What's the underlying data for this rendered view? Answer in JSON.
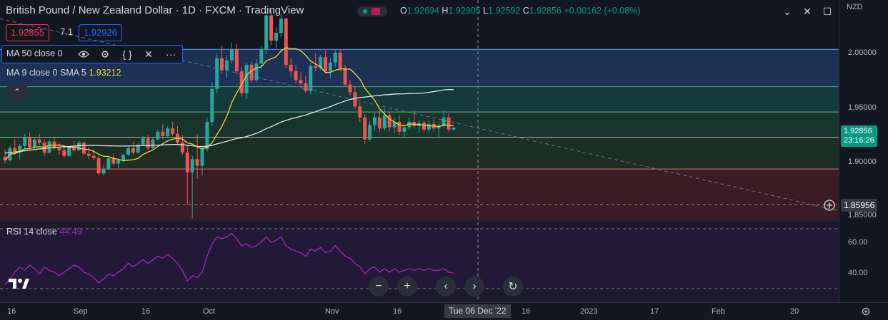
{
  "header": {
    "title": "British Pound / New Zealand Dollar · 1D · FXCM · TradingView",
    "ohlc": {
      "o_label": "O",
      "o": "1.92694",
      "h_label": "H",
      "h": "1.92905",
      "l_label": "L",
      "l": "1.92592",
      "c_label": "C",
      "c": "1.92856",
      "change": "+0.00162 (+0.08%)"
    },
    "sell_price": "1.92855",
    "spread": "7.1",
    "buy_price": "1.92926",
    "currency": "NZD"
  },
  "legend": {
    "ma50": "MA 50 close 0",
    "ma9_label": "MA 9 close 0 SMA 5",
    "ma9_value": "1.93212",
    "rsi_label": "RSI 14 close",
    "rsi_value": "44.49"
  },
  "price_axis": {
    "ticks": [
      "2.00000",
      "1.95000",
      "1.90000",
      "1.85000"
    ],
    "current_price": "1.92856",
    "countdown": "23:16:26",
    "crosshair_price": "1.85956",
    "rsi_ticks": [
      "60.00",
      "40.00"
    ]
  },
  "time_axis": {
    "labels": [
      "16",
      "Sep",
      "16",
      "Oct",
      "Nov",
      "16",
      "16",
      "2023",
      "17",
      "Feb",
      "20"
    ],
    "crosshair_label": "Tue 06 Dec '22"
  },
  "colors": {
    "up": "#26a69a",
    "down": "#ef5350",
    "ma9": "#f5d327",
    "ma50": "#e0e3eb",
    "rsi": "#9c27b0",
    "accent": "#2962ff"
  },
  "icons": [
    "eye-icon",
    "gear-icon",
    "braces-icon",
    "close-icon",
    "more-icon",
    "zoom-out-icon",
    "zoom-in-icon",
    "scroll-left-icon",
    "scroll-right-icon",
    "reset-icon",
    "chevron-up-icon",
    "plus-circle-icon",
    "settings-icon",
    "tradingview-logo"
  ],
  "chart_data": {
    "type": "candlestick",
    "symbol": "GBPNZD",
    "ylim": [
      1.845,
      2.045
    ],
    "candles": [
      [
        1.902,
        1.909,
        1.896,
        1.899
      ],
      [
        1.899,
        1.912,
        1.898,
        1.91
      ],
      [
        1.91,
        1.918,
        1.904,
        1.906
      ],
      [
        1.906,
        1.914,
        1.9,
        1.912
      ],
      [
        1.912,
        1.923,
        1.91,
        1.92
      ],
      [
        1.92,
        1.924,
        1.909,
        1.911
      ],
      [
        1.911,
        1.92,
        1.909,
        1.918
      ],
      [
        1.918,
        1.923,
        1.913,
        1.915
      ],
      [
        1.915,
        1.918,
        1.903,
        1.906
      ],
      [
        1.906,
        1.918,
        1.905,
        1.916
      ],
      [
        1.916,
        1.92,
        1.908,
        1.91
      ],
      [
        1.91,
        1.915,
        1.904,
        1.908
      ],
      [
        1.908,
        1.913,
        1.901,
        1.903
      ],
      [
        1.903,
        1.912,
        1.902,
        1.911
      ],
      [
        1.911,
        1.917,
        1.906,
        1.908
      ],
      [
        1.908,
        1.917,
        1.907,
        1.915
      ],
      [
        1.915,
        1.916,
        1.904,
        1.905
      ],
      [
        1.905,
        1.911,
        1.9,
        1.903
      ],
      [
        1.903,
        1.909,
        1.899,
        1.901
      ],
      [
        1.901,
        1.903,
        1.885,
        1.887
      ],
      [
        1.887,
        1.895,
        1.885,
        1.891
      ],
      [
        1.891,
        1.903,
        1.89,
        1.901
      ],
      [
        1.901,
        1.905,
        1.894,
        1.896
      ],
      [
        1.896,
        1.901,
        1.892,
        1.899
      ],
      [
        1.899,
        1.905,
        1.897,
        1.904
      ],
      [
        1.904,
        1.912,
        1.903,
        1.91
      ],
      [
        1.91,
        1.916,
        1.904,
        1.906
      ],
      [
        1.906,
        1.915,
        1.905,
        1.913
      ],
      [
        1.913,
        1.921,
        1.912,
        1.919
      ],
      [
        1.919,
        1.922,
        1.908,
        1.91
      ],
      [
        1.91,
        1.92,
        1.909,
        1.918
      ],
      [
        1.918,
        1.927,
        1.917,
        1.925
      ],
      [
        1.925,
        1.932,
        1.918,
        1.921
      ],
      [
        1.921,
        1.93,
        1.919,
        1.928
      ],
      [
        1.928,
        1.934,
        1.921,
        1.923
      ],
      [
        1.923,
        1.93,
        1.913,
        1.915
      ],
      [
        1.915,
        1.922,
        1.904,
        1.906
      ],
      [
        1.906,
        1.913,
        1.858,
        1.888
      ],
      [
        1.888,
        1.903,
        1.846,
        1.9
      ],
      [
        1.9,
        1.923,
        1.882,
        1.894
      ],
      [
        1.894,
        1.912,
        1.885,
        1.909
      ],
      [
        1.909,
        1.938,
        1.907,
        1.934
      ],
      [
        1.934,
        1.97,
        1.93,
        1.964
      ],
      [
        1.964,
        1.996,
        1.96,
        1.992
      ],
      [
        1.992,
        2.003,
        1.978,
        1.981
      ],
      [
        1.981,
        1.994,
        1.974,
        1.99
      ],
      [
        1.99,
        2.006,
        1.987,
        2.0
      ],
      [
        2.0,
        2.005,
        1.978,
        1.98
      ],
      [
        1.98,
        1.984,
        1.957,
        1.96
      ],
      [
        1.96,
        1.988,
        1.955,
        1.986
      ],
      [
        1.986,
        1.989,
        1.969,
        1.972
      ],
      [
        1.972,
        1.991,
        1.97,
        1.987
      ],
      [
        1.987,
        2.003,
        1.983,
        2.0
      ],
      [
        2.0,
        2.034,
        1.996,
        2.031
      ],
      [
        2.031,
        2.036,
        2.004,
        2.008
      ],
      [
        2.008,
        2.02,
        2.001,
        2.015
      ],
      [
        2.015,
        2.032,
        2.011,
        2.028
      ],
      [
        2.028,
        2.029,
        1.983,
        1.986
      ],
      [
        1.986,
        1.992,
        1.975,
        1.98
      ],
      [
        1.98,
        1.986,
        1.969,
        1.972
      ],
      [
        1.972,
        1.979,
        1.965,
        1.969
      ],
      [
        1.969,
        1.976,
        1.96,
        1.962
      ],
      [
        1.962,
        1.988,
        1.959,
        1.985
      ],
      [
        1.985,
        1.996,
        1.98,
        1.983
      ],
      [
        1.983,
        1.995,
        1.981,
        1.993
      ],
      [
        1.993,
        1.999,
        1.978,
        1.98
      ],
      [
        1.98,
        1.992,
        1.974,
        1.988
      ],
      [
        1.988,
        2.0,
        1.984,
        1.997
      ],
      [
        1.997,
        2.0,
        1.98,
        1.983
      ],
      [
        1.983,
        1.986,
        1.966,
        1.968
      ],
      [
        1.968,
        1.972,
        1.958,
        1.961
      ],
      [
        1.961,
        1.966,
        1.946,
        1.948
      ],
      [
        1.948,
        1.952,
        1.934,
        1.938
      ],
      [
        1.938,
        1.941,
        1.914,
        1.918
      ],
      [
        1.918,
        1.935,
        1.916,
        1.931
      ],
      [
        1.931,
        1.942,
        1.926,
        1.938
      ],
      [
        1.938,
        1.945,
        1.925,
        1.928
      ],
      [
        1.928,
        1.946,
        1.926,
        1.94
      ],
      [
        1.94,
        1.944,
        1.925,
        1.929
      ],
      [
        1.929,
        1.938,
        1.924,
        1.934
      ],
      [
        1.934,
        1.94,
        1.922,
        1.925
      ],
      [
        1.925,
        1.932,
        1.92,
        1.929
      ],
      [
        1.929,
        1.938,
        1.927,
        1.934
      ],
      [
        1.934,
        1.944,
        1.928,
        1.93
      ],
      [
        1.93,
        1.935,
        1.924,
        1.933
      ],
      [
        1.933,
        1.935,
        1.925,
        1.927
      ],
      [
        1.927,
        1.935,
        1.924,
        1.932
      ],
      [
        1.932,
        1.936,
        1.925,
        1.928
      ],
      [
        1.928,
        1.933,
        1.92,
        1.93
      ],
      [
        1.93,
        1.944,
        1.929,
        1.938
      ],
      [
        1.938,
        1.942,
        1.925,
        1.927
      ],
      [
        1.9269,
        1.9291,
        1.9259,
        1.9286
      ]
    ],
    "rsi_ylim": [
      30,
      72
    ],
    "rsi": [
      40,
      43,
      47,
      50,
      48,
      51,
      49,
      46,
      50,
      48,
      47,
      45,
      47,
      49,
      51,
      50,
      47,
      46,
      44,
      41,
      43,
      46,
      45,
      47,
      49,
      52,
      50,
      52,
      54,
      52,
      54,
      56,
      55,
      57,
      55,
      52,
      48,
      42,
      45,
      44,
      47,
      56,
      63,
      67,
      66,
      67,
      69,
      66,
      62,
      63,
      61,
      62,
      64,
      67,
      64,
      65,
      67,
      62,
      60,
      59,
      58,
      56,
      60,
      59,
      61,
      58,
      59,
      62,
      59,
      56,
      55,
      52,
      50,
      46,
      49,
      50,
      47,
      49,
      47,
      49,
      47,
      48,
      49,
      48,
      49,
      48,
      49,
      48,
      48,
      49,
      47,
      46.5
    ]
  }
}
